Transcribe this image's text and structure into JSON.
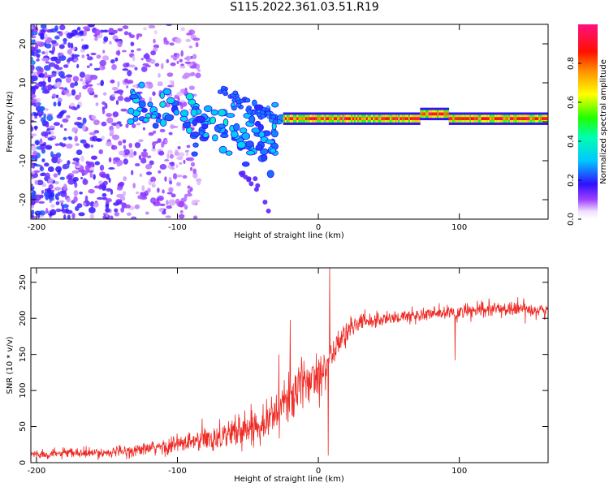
{
  "title": "S115.2022.361.03.51.R19",
  "colors": {
    "snr_line": "#ee2a24",
    "axis": "#000000",
    "background": "#ffffff"
  },
  "chart_data": [
    {
      "type": "heatmap",
      "xlabel": "Height of straight line (km)",
      "ylabel": "Frequency (Hz)",
      "xlim": [
        -204,
        163
      ],
      "ylim": [
        -25,
        25
      ],
      "xticks": [
        -200,
        -100,
        0,
        100
      ],
      "yticks": [
        -20,
        -10,
        0,
        10,
        20
      ],
      "colorbar": {
        "label": "Normalized spectral amplitude",
        "ticks": [
          "0.0",
          "0.2",
          "0.4",
          "0.6",
          "0.8"
        ],
        "range": [
          0,
          1
        ],
        "colormap": "rainbow-white-violet-blue-cyan-green-yellow-orange-red-pink"
      },
      "description_regions": [
        {
          "name": "diffuse-noise",
          "x_range": [
            -204,
            -90
          ],
          "y_range": [
            -25,
            25
          ],
          "amplitude": [
            0.05,
            0.25
          ]
        },
        {
          "name": "ionospheric-branch-upper",
          "x_range": [
            -135,
            -25
          ],
          "y_center": [
            4,
            0
          ],
          "amplitude": [
            0.2,
            0.4
          ]
        },
        {
          "name": "ionospheric-branch-lower",
          "x_range": [
            -90,
            -30
          ],
          "y_center": [
            -2,
            -8
          ],
          "amplitude": [
            0.2,
            0.35
          ]
        },
        {
          "name": "carrier-line",
          "x_range": [
            -25,
            163
          ],
          "y_center": 0.8,
          "amplitude": [
            0.7,
            1.0
          ]
        }
      ]
    },
    {
      "type": "line",
      "xlabel": "Height of straight line (km)",
      "ylabel": "SNR (10 * v/v)",
      "xlim": [
        -204,
        163
      ],
      "ylim": [
        0,
        270
      ],
      "xticks": [
        -200,
        -100,
        0,
        100
      ],
      "yticks": [
        0,
        50,
        100,
        150,
        200,
        250
      ],
      "series": [
        {
          "x": [
            -204,
            -190,
            -175,
            -160,
            -150,
            -140,
            -130,
            -120,
            -110,
            -100,
            -90,
            -80,
            -70,
            -60,
            -50,
            -40,
            -30,
            -25,
            -20,
            -15,
            -10,
            -5,
            0,
            5,
            10,
            15,
            20,
            25,
            30,
            40,
            50,
            60,
            70,
            80,
            90,
            100,
            110,
            120,
            130,
            140,
            150,
            163
          ],
          "values": [
            12,
            12,
            13,
            13,
            14,
            15,
            17,
            19,
            22,
            25,
            28,
            32,
            37,
            42,
            48,
            56,
            68,
            80,
            92,
            100,
            110,
            118,
            125,
            135,
            150,
            168,
            180,
            190,
            195,
            198,
            200,
            202,
            204,
            206,
            207,
            208,
            210,
            212,
            213,
            213,
            213,
            210
          ],
          "noise": [
            6,
            6,
            6,
            6,
            6,
            7,
            8,
            9,
            11,
            13,
            15,
            17,
            19,
            20,
            22,
            24,
            26,
            28,
            30,
            30,
            30,
            30,
            28,
            26,
            24,
            20,
            16,
            14,
            12,
            10,
            10,
            10,
            10,
            10,
            10,
            10,
            10,
            10,
            10,
            10,
            10,
            10
          ]
        }
      ],
      "spikes": [
        {
          "x": 8,
          "y": 270
        },
        {
          "x": 7,
          "y": 10
        },
        {
          "x": 97,
          "y": 142
        },
        {
          "x": -20,
          "y": 198
        },
        {
          "x": -28,
          "y": 150
        }
      ]
    }
  ]
}
